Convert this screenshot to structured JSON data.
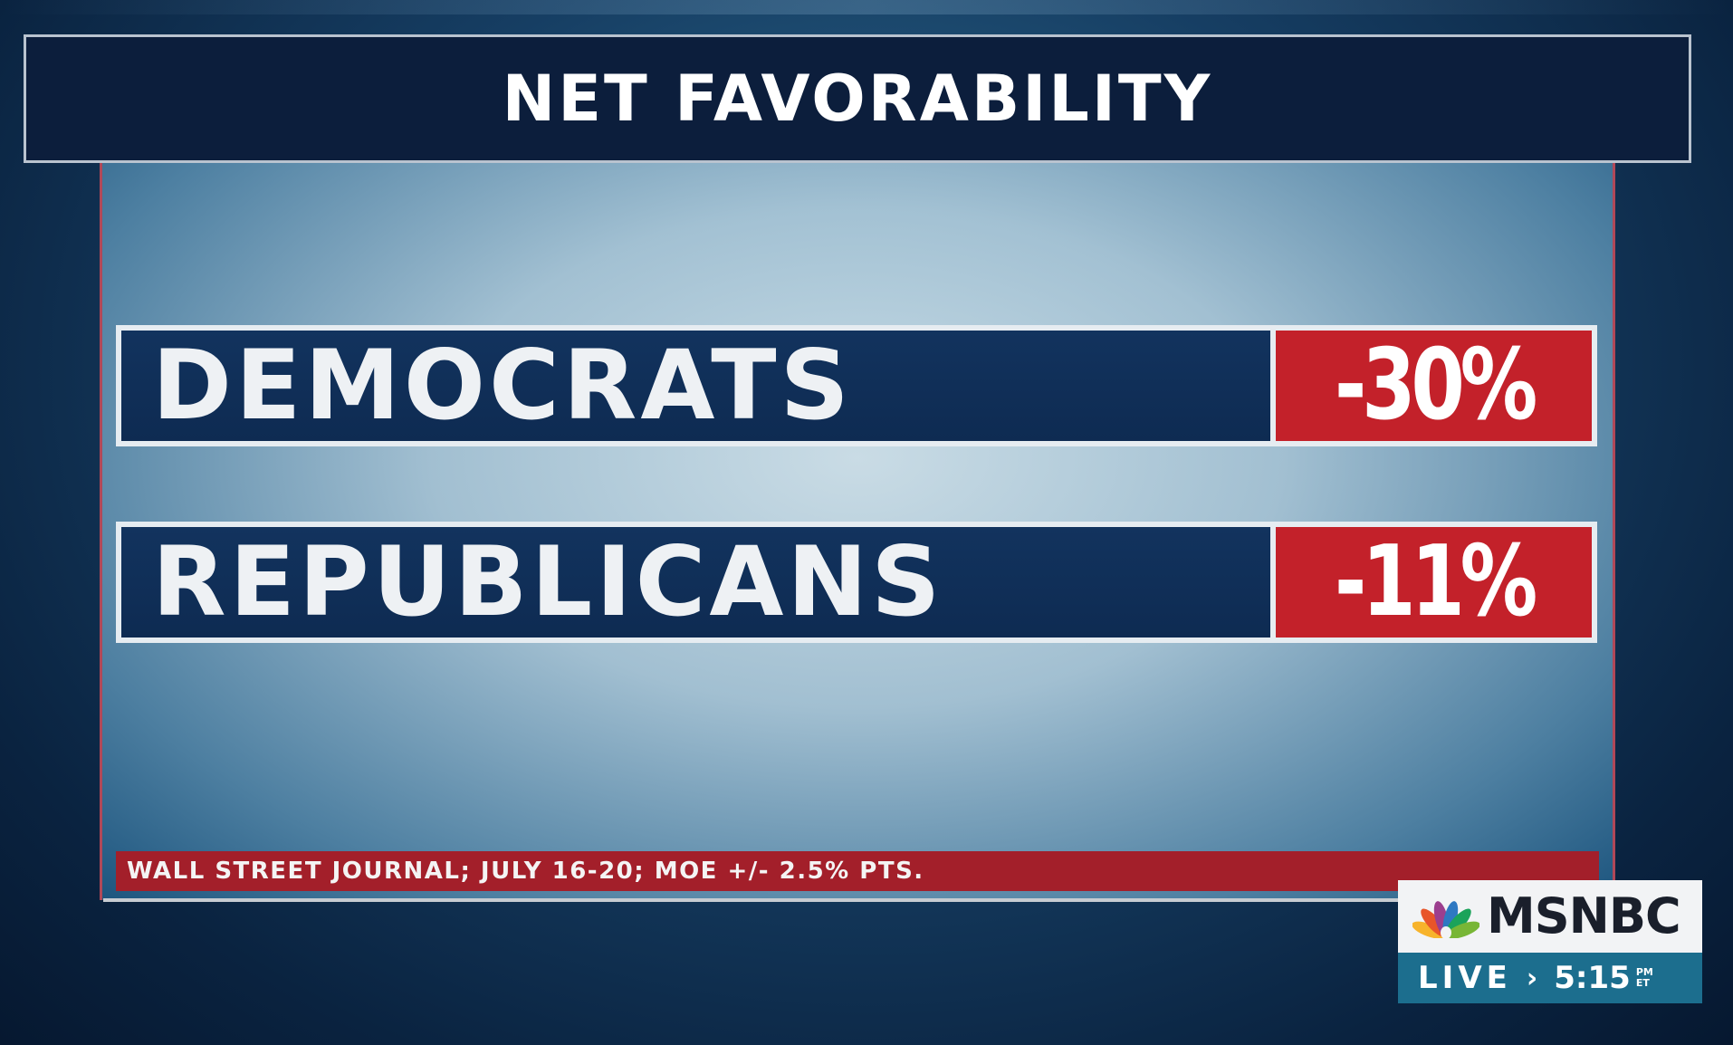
{
  "title": "NET FAVORABILITY",
  "rows": [
    {
      "label": "DEMOCRATS",
      "value": "-30%"
    },
    {
      "label": "REPUBLICANS",
      "value": "-11%"
    }
  ],
  "source": "WALL STREET JOURNAL; JULY 16-20; MOE +/- 2.5% PTS.",
  "logo": {
    "network": "MSNBC",
    "live": "LIVE",
    "time": "5:15",
    "ampm": "PM",
    "timezone": "ET"
  },
  "colors": {
    "navy": "#0e2b52",
    "red": "#c3212a",
    "teal": "#1c6e8e"
  }
}
